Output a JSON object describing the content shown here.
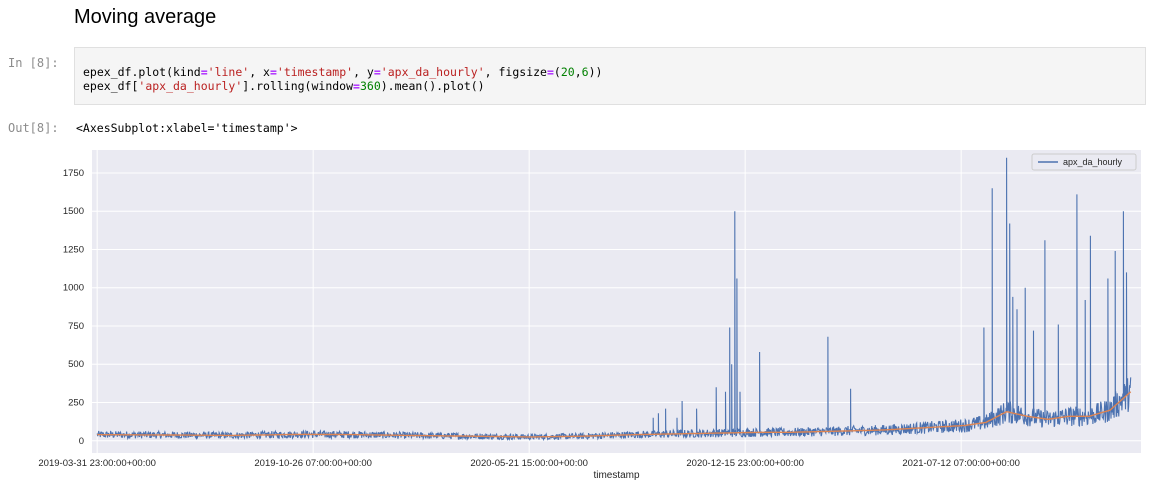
{
  "notebook": {
    "heading": "Moving average",
    "in_prompt": "In [8]:",
    "out_prompt": "Out[8]:",
    "output_text": "<AxesSubplot:xlabel='timestamp'>"
  },
  "colors": {
    "series_blue": "#4c72b0",
    "series_orange": "#dd8452",
    "axes_bg": "#eaeaf2",
    "code_string": "#ba2121",
    "code_operator": "#aa22ff",
    "code_number": "#008000"
  },
  "chart_data": {
    "type": "line",
    "xlabel": "timestamp",
    "ylabel": "",
    "ylim": [
      -80,
      1900
    ],
    "yticks": [
      0,
      250,
      500,
      750,
      1000,
      1250,
      1500,
      1750
    ],
    "xtick_labels": [
      "2019-03-31 23:00:00+00:00",
      "2019-10-26 07:00:00+00:00",
      "2020-05-21 15:00:00+00:00",
      "2020-12-15 23:00:00+00:00",
      "2021-07-12 07:00:00+00:00"
    ],
    "xrange_days": [
      -5,
      1010
    ],
    "xtick_days": [
      0,
      209,
      418,
      627,
      836
    ],
    "legend": {
      "entries": [
        "apx_da_hourly"
      ],
      "placement": "top-right"
    },
    "grid": true,
    "series": [
      {
        "name": "apx_da_hourly",
        "baseline_days": [
          0,
          60,
          130,
          200,
          250,
          300,
          360,
          420,
          470,
          520,
          560,
          600,
          640,
          670,
          700,
          730,
          760,
          800,
          840,
          860,
          880,
          900,
          920,
          940,
          960,
          980,
          1000
        ],
        "baseline_values": [
          40,
          38,
          35,
          42,
          40,
          35,
          30,
          25,
          30,
          40,
          45,
          50,
          55,
          55,
          60,
          65,
          70,
          85,
          100,
          120,
          190,
          160,
          140,
          160,
          160,
          200,
          320
        ],
        "spike_days": [
          538,
          543,
          550,
          561,
          566,
          580,
          599,
          608,
          612,
          614,
          617,
          619,
          622,
          641,
          707,
          729,
          858,
          866,
          880,
          883,
          886,
          890,
          898,
          906,
          917,
          930,
          948,
          956,
          961,
          978,
          985,
          993,
          996
        ],
        "spike_values": [
          150,
          180,
          210,
          150,
          260,
          210,
          350,
          320,
          740,
          500,
          1500,
          1060,
          320,
          580,
          680,
          340,
          740,
          1650,
          1850,
          1420,
          940,
          860,
          1000,
          720,
          1310,
          760,
          1610,
          920,
          1340,
          1060,
          1240,
          1500,
          1100
        ]
      },
      {
        "name": "",
        "baseline_days": [
          0,
          60,
          130,
          200,
          250,
          300,
          360,
          420,
          470,
          520,
          560,
          600,
          640,
          670,
          700,
          730,
          760,
          800,
          840,
          860,
          880,
          900,
          920,
          940,
          960,
          980,
          1000
        ],
        "baseline_values": [
          40,
          38,
          35,
          42,
          40,
          35,
          30,
          25,
          30,
          40,
          45,
          50,
          55,
          55,
          60,
          65,
          70,
          85,
          100,
          120,
          190,
          160,
          140,
          160,
          160,
          200,
          320
        ]
      }
    ]
  }
}
